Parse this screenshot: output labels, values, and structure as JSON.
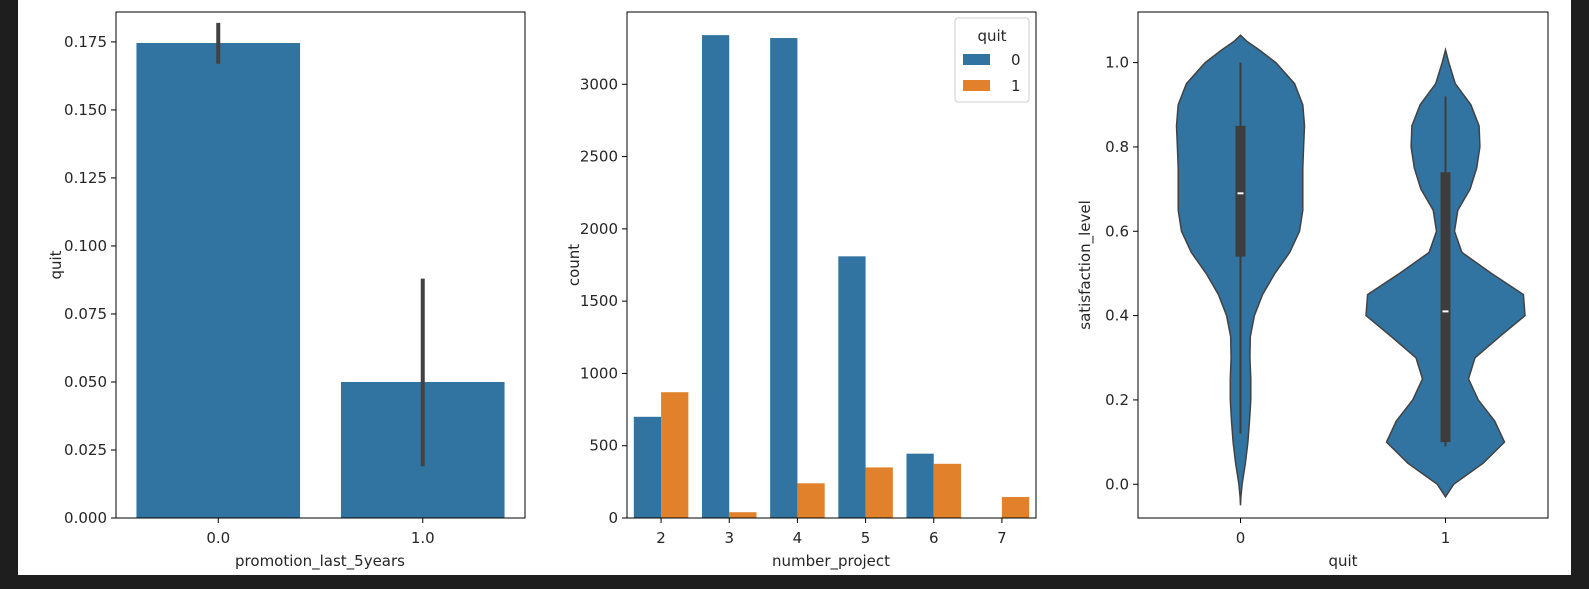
{
  "colors": {
    "blue": "#3274a1",
    "orange": "#e1812c",
    "errbar": "#424242",
    "violin_edge": "#424242",
    "box": "#3d3d3d",
    "median": "#ffffff"
  },
  "chart_data": [
    {
      "type": "bar",
      "title": "",
      "xlabel": "promotion_last_5years",
      "ylabel": "quit",
      "categories": [
        "0.0",
        "1.0"
      ],
      "values": [
        0.1746,
        0.05
      ],
      "ci": [
        [
          0.167,
          0.182
        ],
        [
          0.019,
          0.088
        ]
      ],
      "ylim": [
        0,
        0.186
      ],
      "yticks": [
        0.0,
        0.025,
        0.05,
        0.075,
        0.1,
        0.125,
        0.15,
        0.175
      ],
      "ytick_labels": [
        "0.000",
        "0.025",
        "0.050",
        "0.075",
        "0.100",
        "0.125",
        "0.150",
        "0.175"
      ],
      "color": "#3274a1"
    },
    {
      "type": "bar",
      "title": "",
      "xlabel": "number_project",
      "ylabel": "count",
      "categories": [
        "2",
        "3",
        "4",
        "5",
        "6",
        "7"
      ],
      "series": [
        {
          "name": "0",
          "values": [
            700,
            3340,
            3320,
            1810,
            445,
            0
          ],
          "color": "#3274a1"
        },
        {
          "name": "1",
          "values": [
            870,
            40,
            240,
            350,
            375,
            145
          ],
          "color": "#e1812c"
        }
      ],
      "legend": {
        "title": "quit",
        "position": "top-right"
      },
      "ylim": [
        0,
        3500
      ],
      "yticks": [
        0,
        500,
        1000,
        1500,
        2000,
        2500,
        3000
      ],
      "ytick_labels": [
        "0",
        "500",
        "1000",
        "1500",
        "2000",
        "2500",
        "3000"
      ]
    },
    {
      "type": "violin",
      "title": "",
      "xlabel": "quit",
      "ylabel": "satisfaction_level",
      "categories": [
        "0",
        "1"
      ],
      "ylim": [
        -0.08,
        1.12
      ],
      "yticks": [
        0.0,
        0.2,
        0.4,
        0.6,
        0.8,
        1.0
      ],
      "ytick_labels": [
        "0.0",
        "0.2",
        "0.4",
        "0.6",
        "0.8",
        "1.0"
      ],
      "violins": [
        {
          "name": "0",
          "min": 0.12,
          "q1": 0.54,
          "median": 0.69,
          "q3": 0.85,
          "max": 1.0,
          "profile": [
            [
              -0.05,
              0
            ],
            [
              -0.03,
              0.005
            ],
            [
              0,
              0.02
            ],
            [
              0.05,
              0.06
            ],
            [
              0.1,
              0.09
            ],
            [
              0.15,
              0.11
            ],
            [
              0.2,
              0.125
            ],
            [
              0.25,
              0.125
            ],
            [
              0.3,
              0.115
            ],
            [
              0.35,
              0.12
            ],
            [
              0.4,
              0.17
            ],
            [
              0.45,
              0.27
            ],
            [
              0.5,
              0.42
            ],
            [
              0.55,
              0.6
            ],
            [
              0.6,
              0.72
            ],
            [
              0.65,
              0.76
            ],
            [
              0.7,
              0.76
            ],
            [
              0.75,
              0.76
            ],
            [
              0.8,
              0.77
            ],
            [
              0.85,
              0.78
            ],
            [
              0.9,
              0.76
            ],
            [
              0.95,
              0.66
            ],
            [
              1.0,
              0.43
            ],
            [
              1.03,
              0.23
            ],
            [
              1.05,
              0.08
            ],
            [
              1.065,
              0
            ]
          ]
        },
        {
          "name": "1",
          "min": 0.09,
          "q1": 0.1,
          "median": 0.41,
          "q3": 0.74,
          "max": 0.92,
          "profile": [
            [
              -0.03,
              0
            ],
            [
              0,
              0.1
            ],
            [
              0.05,
              0.46
            ],
            [
              0.1,
              0.72
            ],
            [
              0.15,
              0.6
            ],
            [
              0.2,
              0.4
            ],
            [
              0.25,
              0.28
            ],
            [
              0.3,
              0.36
            ],
            [
              0.35,
              0.66
            ],
            [
              0.4,
              0.97
            ],
            [
              0.45,
              0.95
            ],
            [
              0.5,
              0.56
            ],
            [
              0.55,
              0.2
            ],
            [
              0.6,
              0.11
            ],
            [
              0.65,
              0.15
            ],
            [
              0.7,
              0.3
            ],
            [
              0.75,
              0.38
            ],
            [
              0.8,
              0.42
            ],
            [
              0.85,
              0.41
            ],
            [
              0.9,
              0.31
            ],
            [
              0.95,
              0.12
            ],
            [
              1.0,
              0.04
            ],
            [
              1.03,
              0
            ]
          ]
        }
      ]
    }
  ]
}
